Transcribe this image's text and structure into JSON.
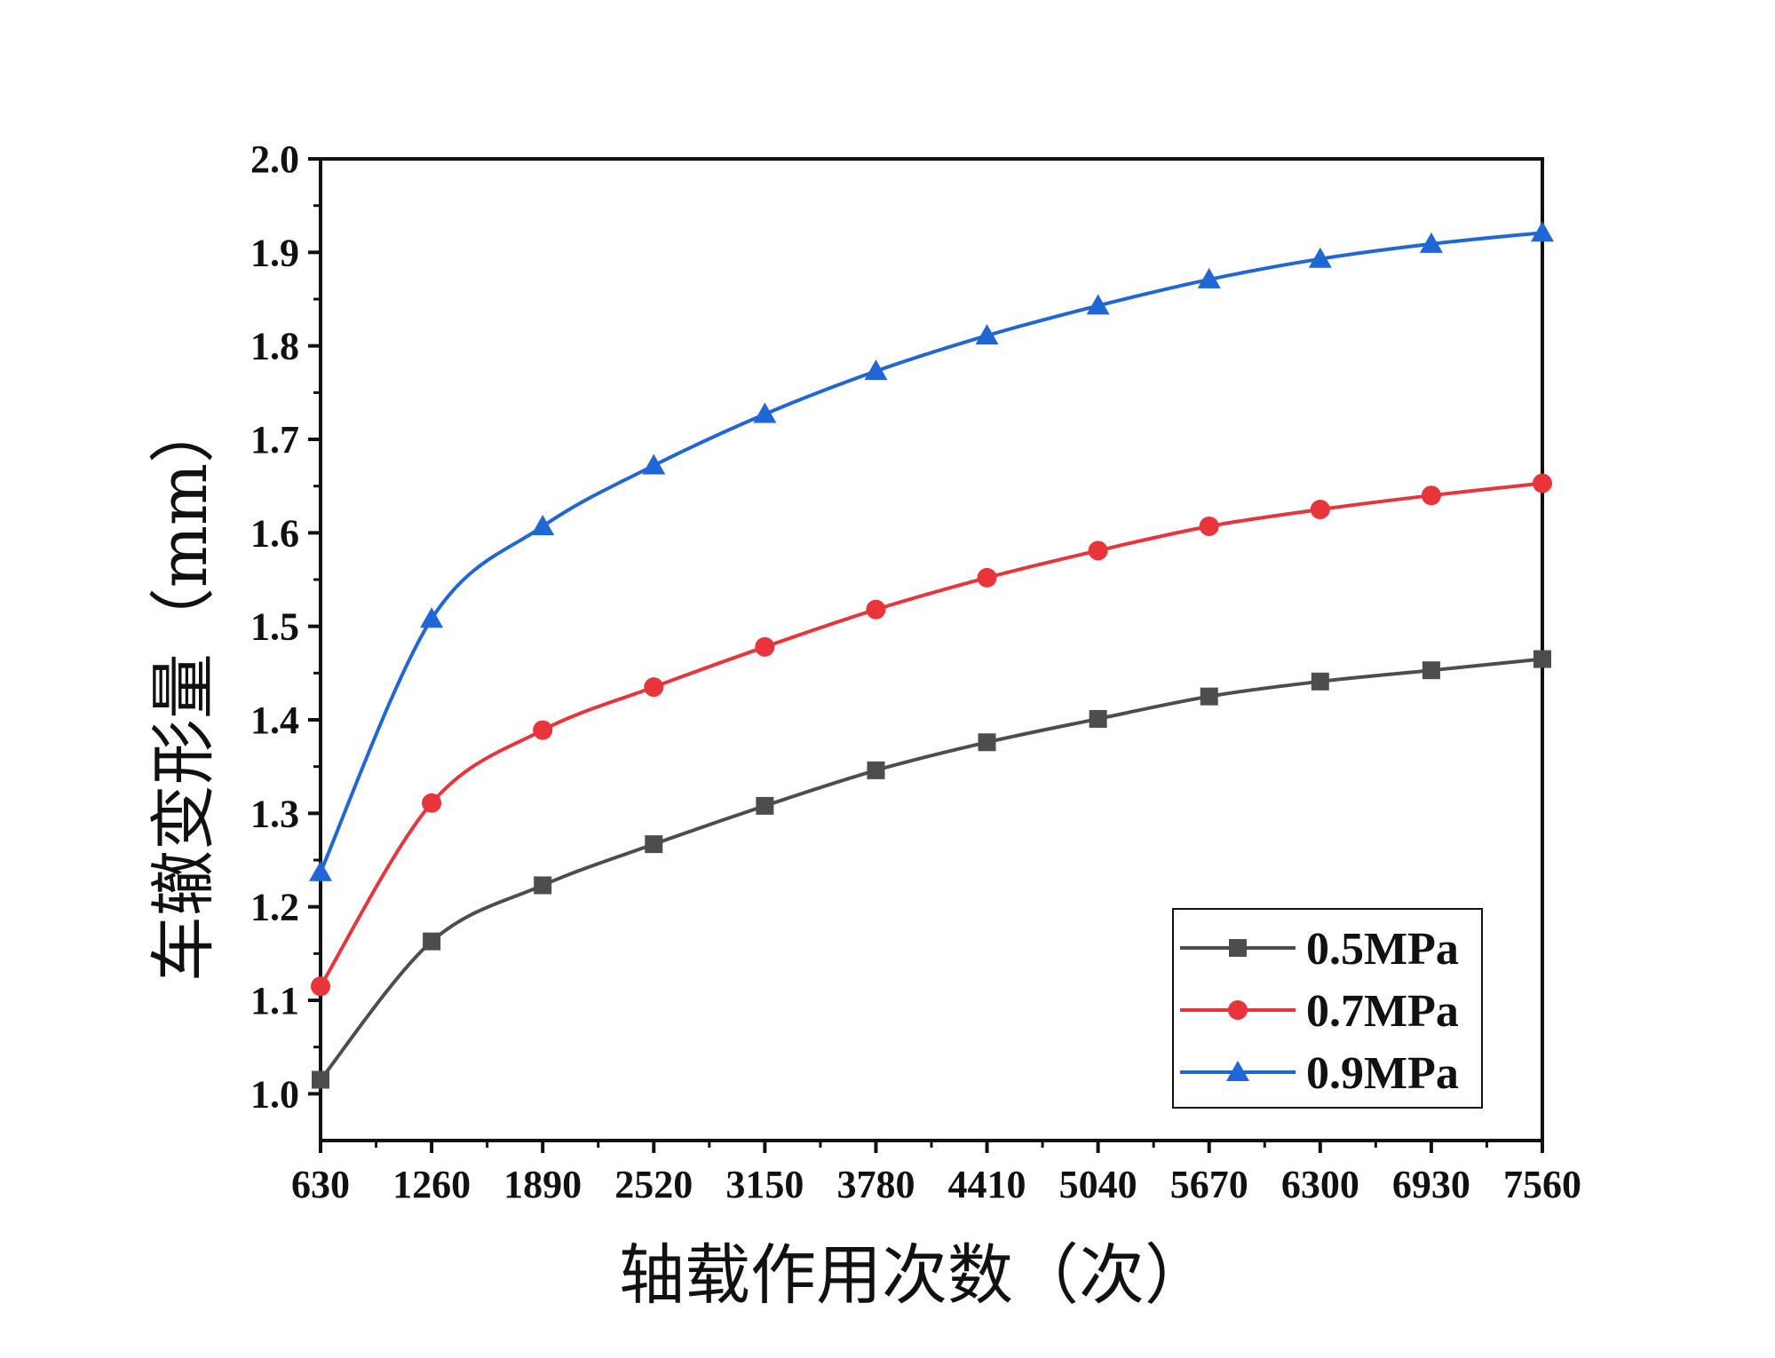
{
  "chart_data": {
    "type": "line",
    "title": "",
    "xlabel": "轴载作用次数（次）",
    "ylabel": "车辙变形量（mm）",
    "x": [
      630,
      1260,
      1890,
      2520,
      3150,
      3780,
      4410,
      5040,
      5670,
      6300,
      6930,
      7560
    ],
    "x_tick_labels": [
      "630",
      "1260",
      "1890",
      "2520",
      "3150",
      "3780",
      "4410",
      "5040",
      "5670",
      "6300",
      "6930",
      "7560"
    ],
    "xlim": [
      630,
      7560
    ],
    "ylim": [
      0.95,
      2.0
    ],
    "y_ticks": [
      1.0,
      1.1,
      1.2,
      1.3,
      1.4,
      1.5,
      1.6,
      1.7,
      1.8,
      1.9,
      2.0
    ],
    "y_tick_labels": [
      "1.0",
      "1.1",
      "1.2",
      "1.3",
      "1.4",
      "1.5",
      "1.6",
      "1.7",
      "1.8",
      "1.9",
      "2.0"
    ],
    "grid": false,
    "legend_position": "bottom-right",
    "series": [
      {
        "name": "0.5MPa",
        "marker": "square",
        "color": "#4d4d4d",
        "values": [
          1.015,
          1.163,
          1.223,
          1.267,
          1.308,
          1.346,
          1.376,
          1.401,
          1.425,
          1.441,
          1.453,
          1.465
        ]
      },
      {
        "name": "0.7MPa",
        "marker": "circle",
        "color": "#e8343a",
        "values": [
          1.115,
          1.311,
          1.389,
          1.435,
          1.478,
          1.518,
          1.552,
          1.581,
          1.607,
          1.625,
          1.64,
          1.653
        ]
      },
      {
        "name": "0.9MPa",
        "marker": "triangle",
        "color": "#1f66d6",
        "values": [
          1.237,
          1.508,
          1.607,
          1.672,
          1.727,
          1.773,
          1.811,
          1.843,
          1.871,
          1.893,
          1.909,
          1.921
        ]
      }
    ]
  }
}
